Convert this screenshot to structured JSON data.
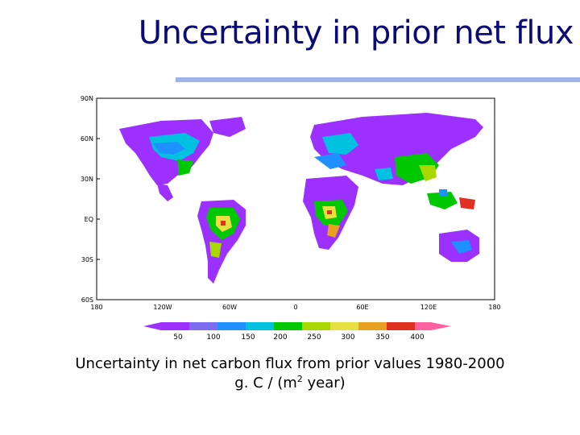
{
  "slide": {
    "title": "Uncertainty in prior net flux",
    "accent_rule_color": "#9db3ea",
    "title_color": "#0a0a78"
  },
  "map": {
    "lat_ticks": [
      "90N",
      "60N",
      "30N",
      "EQ",
      "30S",
      "60S"
    ],
    "lon_ticks": [
      "180",
      "120W",
      "60W",
      "0",
      "60E",
      "120E",
      "180"
    ],
    "projection": "equirectangular",
    "colorbar": {
      "labels": [
        "50",
        "100",
        "150",
        "200",
        "250",
        "300",
        "350",
        "400"
      ],
      "colors": [
        "#9b30ff",
        "#7b6cf0",
        "#1e90ff",
        "#00c2e0",
        "#00c800",
        "#a8d800",
        "#e8e040",
        "#e8a020",
        "#e03020",
        "#ff60a0"
      ]
    }
  },
  "caption": {
    "line1": "Uncertainty in net carbon flux from prior values 1980-2000",
    "line2_prefix": "g. C / (m",
    "line2_sup": "2",
    "line2_suffix": " year)"
  }
}
